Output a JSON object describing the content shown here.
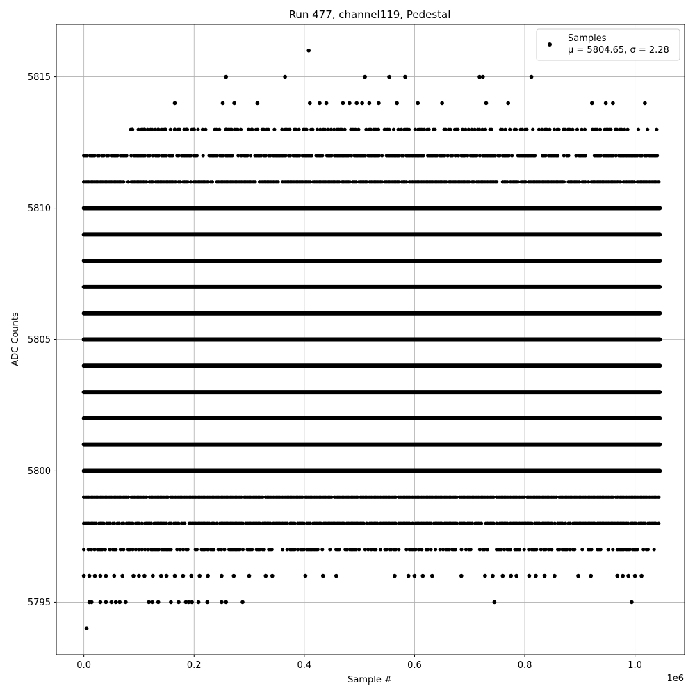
{
  "chart_data": {
    "type": "scatter",
    "title": "Run 477, channel119, Pedestal",
    "xlabel": "Sample #",
    "ylabel": "ADC Counts",
    "x_offset_label": "1e6",
    "xlim": [
      -50000,
      1090000
    ],
    "ylim": [
      5793,
      5817
    ],
    "x_ticks": [
      0,
      200000,
      400000,
      600000,
      800000,
      1000000
    ],
    "x_tick_labels": [
      "0.0",
      "0.2",
      "0.4",
      "0.6",
      "0.8",
      "1.0"
    ],
    "y_ticks": [
      5795,
      5800,
      5805,
      5810,
      5815
    ],
    "y_tick_labels": [
      "5795",
      "5800",
      "5805",
      "5810",
      "5815"
    ],
    "grid": true,
    "legend_position": "top-right",
    "n_samples": 1045000,
    "series": [
      {
        "name": "Samples",
        "stats_label": "μ = 5804.65, σ = 2.28",
        "color": "#000000",
        "bands": [
          {
            "y": 5797,
            "x_range": [
              0,
              1045000
            ],
            "density": 0.55
          },
          {
            "y": 5798,
            "x_range": [
              0,
              1045000
            ],
            "density": 0.85
          },
          {
            "y": 5799,
            "x_range": [
              0,
              1045000
            ],
            "density": 0.97
          },
          {
            "y": 5800,
            "x_range": [
              0,
              1045000
            ],
            "density": 1.0
          },
          {
            "y": 5801,
            "x_range": [
              0,
              1045000
            ],
            "density": 1.0
          },
          {
            "y": 5802,
            "x_range": [
              0,
              1045000
            ],
            "density": 1.0
          },
          {
            "y": 5803,
            "x_range": [
              0,
              1045000
            ],
            "density": 1.0
          },
          {
            "y": 5804,
            "x_range": [
              0,
              1045000
            ],
            "density": 1.0
          },
          {
            "y": 5805,
            "x_range": [
              0,
              1045000
            ],
            "density": 1.0
          },
          {
            "y": 5806,
            "x_range": [
              0,
              1045000
            ],
            "density": 1.0
          },
          {
            "y": 5807,
            "x_range": [
              0,
              1045000
            ],
            "density": 1.0
          },
          {
            "y": 5808,
            "x_range": [
              0,
              1045000
            ],
            "density": 1.0
          },
          {
            "y": 5809,
            "x_range": [
              0,
              1045000
            ],
            "density": 1.0
          },
          {
            "y": 5810,
            "x_range": [
              0,
              1045000
            ],
            "density": 0.99
          },
          {
            "y": 5811,
            "x_range": [
              0,
              1045000
            ],
            "density": 0.9
          },
          {
            "y": 5812,
            "x_range": [
              0,
              1045000
            ],
            "density": 0.75
          },
          {
            "y": 5813,
            "x_range": [
              85000,
              1040000
            ],
            "density": 0.45
          }
        ],
        "points": [
          [
            5000,
            5794
          ],
          [
            10000,
            5795
          ],
          [
            14000,
            5795
          ],
          [
            30000,
            5795
          ],
          [
            40000,
            5795
          ],
          [
            50000,
            5795
          ],
          [
            58000,
            5795
          ],
          [
            65000,
            5795
          ],
          [
            76000,
            5795
          ],
          [
            118000,
            5795
          ],
          [
            124000,
            5795
          ],
          [
            135000,
            5795
          ],
          [
            158000,
            5795
          ],
          [
            172000,
            5795
          ],
          [
            185000,
            5795
          ],
          [
            190000,
            5795
          ],
          [
            196000,
            5795
          ],
          [
            208000,
            5795
          ],
          [
            224000,
            5795
          ],
          [
            250000,
            5795
          ],
          [
            258000,
            5795
          ],
          [
            288000,
            5795
          ],
          [
            745000,
            5795
          ],
          [
            994000,
            5795
          ],
          [
            0,
            5796
          ],
          [
            10000,
            5796
          ],
          [
            20000,
            5796
          ],
          [
            30000,
            5796
          ],
          [
            40000,
            5796
          ],
          [
            55000,
            5796
          ],
          [
            70000,
            5796
          ],
          [
            90000,
            5796
          ],
          [
            100000,
            5796
          ],
          [
            110000,
            5796
          ],
          [
            125000,
            5796
          ],
          [
            140000,
            5796
          ],
          [
            150000,
            5796
          ],
          [
            165000,
            5796
          ],
          [
            180000,
            5796
          ],
          [
            195000,
            5796
          ],
          [
            210000,
            5796
          ],
          [
            225000,
            5796
          ],
          [
            250000,
            5796
          ],
          [
            272000,
            5796
          ],
          [
            300000,
            5796
          ],
          [
            330000,
            5796
          ],
          [
            342000,
            5796
          ],
          [
            402000,
            5796
          ],
          [
            434000,
            5796
          ],
          [
            458000,
            5796
          ],
          [
            564000,
            5796
          ],
          [
            589000,
            5796
          ],
          [
            600000,
            5796
          ],
          [
            615000,
            5796
          ],
          [
            632000,
            5796
          ],
          [
            685000,
            5796
          ],
          [
            728000,
            5796
          ],
          [
            742000,
            5796
          ],
          [
            760000,
            5796
          ],
          [
            775000,
            5796
          ],
          [
            785000,
            5796
          ],
          [
            808000,
            5796
          ],
          [
            820000,
            5796
          ],
          [
            836000,
            5796
          ],
          [
            854000,
            5796
          ],
          [
            897000,
            5796
          ],
          [
            920000,
            5796
          ],
          [
            968000,
            5796
          ],
          [
            978000,
            5796
          ],
          [
            988000,
            5796
          ],
          [
            1000000,
            5796
          ],
          [
            1012000,
            5796
          ],
          [
            88000,
            5813
          ],
          [
            110000,
            5813
          ],
          [
            135000,
            5813
          ],
          [
            148000,
            5813
          ],
          [
            165000,
            5813
          ],
          [
            186000,
            5813
          ],
          [
            200000,
            5813
          ],
          [
            258000,
            5813
          ],
          [
            305000,
            5813
          ],
          [
            165000,
            5814
          ],
          [
            252000,
            5814
          ],
          [
            273000,
            5814
          ],
          [
            315000,
            5814
          ],
          [
            410000,
            5814
          ],
          [
            428000,
            5814
          ],
          [
            440000,
            5814
          ],
          [
            470000,
            5814
          ],
          [
            482000,
            5814
          ],
          [
            495000,
            5814
          ],
          [
            505000,
            5814
          ],
          [
            518000,
            5814
          ],
          [
            535000,
            5814
          ],
          [
            568000,
            5814
          ],
          [
            606000,
            5814
          ],
          [
            650000,
            5814
          ],
          [
            730000,
            5814
          ],
          [
            770000,
            5814
          ],
          [
            922000,
            5814
          ],
          [
            947000,
            5814
          ],
          [
            960000,
            5814
          ],
          [
            1018000,
            5814
          ],
          [
            258000,
            5815
          ],
          [
            365000,
            5815
          ],
          [
            510000,
            5815
          ],
          [
            554000,
            5815
          ],
          [
            583000,
            5815
          ],
          [
            718000,
            5815
          ],
          [
            724000,
            5815
          ],
          [
            812000,
            5815
          ],
          [
            408000,
            5816
          ]
        ]
      }
    ]
  }
}
